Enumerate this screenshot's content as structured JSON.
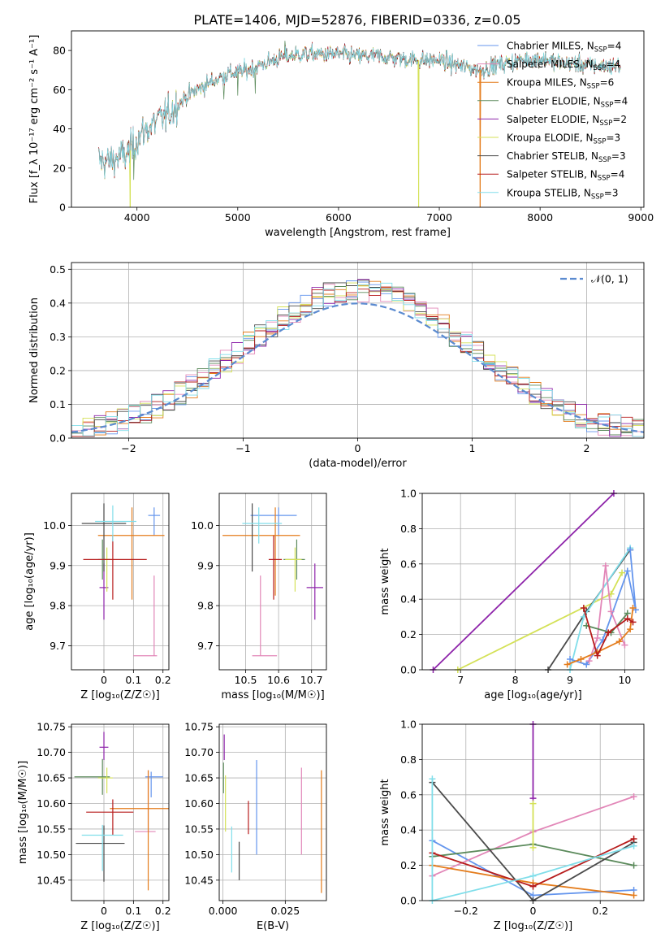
{
  "title": "PLATE=1406, MJD=52876, FIBERID=0336, z=0.05",
  "models": [
    {
      "name": "Chabrier MILES",
      "nssp": "4",
      "color": "#6495ED"
    },
    {
      "name": "Salpeter MILES",
      "nssp": "4",
      "color": "#E287B8"
    },
    {
      "name": "Kroupa MILES",
      "nssp": "6",
      "color": "#E47C1C"
    },
    {
      "name": "Chabrier ELODIE",
      "nssp": "4",
      "color": "#5B8A5B"
    },
    {
      "name": "Salpeter ELODIE",
      "nssp": "2",
      "color": "#8E24AA"
    },
    {
      "name": "Kroupa ELODIE",
      "nssp": "3",
      "color": "#D4E157"
    },
    {
      "name": "Chabrier STELIB",
      "nssp": "3",
      "color": "#4A4A4A"
    },
    {
      "name": "Salpeter STELIB",
      "nssp": "4",
      "color": "#B71C1C"
    },
    {
      "name": "Kroupa STELIB",
      "nssp": "3",
      "color": "#80DEEA"
    }
  ],
  "chart_data": [
    {
      "id": "spectrum",
      "type": "line",
      "xlabel": "wavelength [Angstrom, rest frame]",
      "ylabel": "Flux [f_λ 10⁻¹⁷ erg cm⁻² s⁻¹ A⁻¹]",
      "xlim": [
        3350,
        9030
      ],
      "ylim": [
        0,
        90
      ],
      "xticks": [
        4000,
        5000,
        6000,
        7000,
        8000,
        9000
      ],
      "yticks": [
        0,
        20,
        40,
        60,
        80
      ],
      "continuum": [
        [
          3620,
          24
        ],
        [
          3700,
          23
        ],
        [
          3800,
          25
        ],
        [
          3900,
          27
        ],
        [
          3950,
          30
        ],
        [
          4000,
          35
        ],
        [
          4100,
          40
        ],
        [
          4200,
          44
        ],
        [
          4300,
          47
        ],
        [
          4400,
          52
        ],
        [
          4500,
          57
        ],
        [
          4700,
          63
        ],
        [
          4900,
          68
        ],
        [
          5100,
          70
        ],
        [
          5200,
          72
        ],
        [
          5400,
          76
        ],
        [
          5600,
          78
        ],
        [
          5800,
          78
        ],
        [
          6000,
          78
        ],
        [
          6200,
          77
        ],
        [
          6400,
          77
        ],
        [
          6600,
          76
        ],
        [
          6800,
          75
        ],
        [
          7000,
          75
        ],
        [
          7200,
          72
        ],
        [
          7400,
          70
        ],
        [
          7600,
          73
        ],
        [
          7800,
          75
        ],
        [
          8000,
          76
        ],
        [
          8200,
          74
        ],
        [
          8400,
          73
        ],
        [
          8600,
          72
        ],
        [
          8800,
          72
        ]
      ],
      "dips": [
        [
          3933,
          0
        ],
        [
          6795,
          0
        ],
        [
          7405,
          0
        ]
      ],
      "spikes": [
        [
          5470,
          85
        ],
        [
          5000,
          57
        ],
        [
          4860,
          55
        ],
        [
          5175,
          58
        ],
        [
          3970,
          14
        ]
      ]
    },
    {
      "id": "residuals",
      "type": "histogram",
      "xlabel": "(data-model)/error",
      "ylabel": "Normed distribution",
      "xlim": [
        -2.5,
        2.5
      ],
      "ylim": [
        0,
        0.52
      ],
      "xticks": [
        -2,
        -1,
        0,
        1,
        2
      ],
      "yticks": [
        0.0,
        0.1,
        0.2,
        0.3,
        0.4,
        0.5
      ],
      "bin_width": 0.1,
      "reference": {
        "label": "𝒩(0, 1)",
        "mean": 0,
        "sigma": 1,
        "color": "#5B8BD0"
      }
    },
    {
      "id": "age-vs-Z",
      "type": "scatter",
      "xlabel": "Z [log₁₀(Z/Z☉)]",
      "ylabel": "age  [log₁₀(age/yr)]",
      "xlim": [
        -0.11,
        0.22
      ],
      "ylim": [
        9.64,
        10.08
      ],
      "xticks": [
        0.0,
        0.1,
        0.2
      ],
      "yticks": [
        9.7,
        9.8,
        9.9,
        10.0
      ],
      "points": [
        {
          "model": 0,
          "x": 0.17,
          "y": 10.025,
          "xerr": [
            0.02,
            0.02
          ],
          "yerr": [
            0.05,
            0.02
          ]
        },
        {
          "model": 1,
          "x": 0.15,
          "y": 9.675,
          "xerr": [
            0.05,
            0.03
          ],
          "yerr": [
            0.0,
            0.0
          ]
        },
        {
          "model": 1,
          "x": 0.17,
          "y": 9.675,
          "xerr": [
            0.0,
            0.0
          ],
          "yerr": [
            0.0,
            0.2
          ]
        },
        {
          "model": 2,
          "x": 0.095,
          "y": 9.975,
          "xerr": [
            0.115,
            0.11
          ],
          "yerr": [
            0.16,
            0.07
          ]
        },
        {
          "model": 3,
          "x": -0.005,
          "y": 9.915,
          "xerr": [
            0.015,
            0.025
          ],
          "yerr": [
            0.05,
            0.05
          ]
        },
        {
          "model": 4,
          "x": 0.0,
          "y": 9.845,
          "xerr": [
            0.015,
            0.015
          ],
          "yerr": [
            0.08,
            0.06
          ]
        },
        {
          "model": 5,
          "x": 0.01,
          "y": 9.915,
          "xerr": [
            0.025,
            0.015
          ],
          "yerr": [
            0.08,
            0.03
          ]
        },
        {
          "model": 6,
          "x": 0.0,
          "y": 10.005,
          "xerr": [
            0.075,
            0.075
          ],
          "yerr": [
            0.12,
            0.05
          ]
        },
        {
          "model": 7,
          "x": 0.03,
          "y": 9.915,
          "xerr": [
            0.1,
            0.115
          ],
          "yerr": [
            0.1,
            0.06
          ]
        },
        {
          "model": 8,
          "x": 0.03,
          "y": 10.01,
          "xerr": [
            0.06,
            0.08
          ],
          "yerr": [
            0.05,
            0.04
          ]
        }
      ]
    },
    {
      "id": "age-vs-mass",
      "type": "scatter",
      "xlabel": "mass [log₁₀(M/M☉)]",
      "ylabel": "",
      "xlim": [
        10.42,
        10.745
      ],
      "ylim": [
        9.64,
        10.08
      ],
      "xticks": [
        10.5,
        10.6,
        10.7
      ],
      "yticks": [
        9.7,
        9.8,
        9.9,
        10.0
      ],
      "points": [
        {
          "model": 0,
          "x": 10.6,
          "y": 10.025,
          "xerr": [
            0.085,
            0.055
          ],
          "yerr": [
            0.05,
            0.02
          ]
        },
        {
          "model": 1,
          "x": 10.545,
          "y": 9.675,
          "xerr": [
            0.025,
            0.05
          ],
          "yerr": [
            0.0,
            0.2
          ]
        },
        {
          "model": 2,
          "x": 10.59,
          "y": 9.975,
          "xerr": [
            0.16,
            0.075
          ],
          "yerr": [
            0.15,
            0.07
          ]
        },
        {
          "model": 3,
          "x": 10.655,
          "y": 9.915,
          "xerr": [
            0.04,
            0.025
          ],
          "yerr": [
            0.05,
            0.05
          ]
        },
        {
          "model": 4,
          "x": 10.71,
          "y": 9.845,
          "xerr": [
            0.025,
            0.025
          ],
          "yerr": [
            0.08,
            0.06
          ]
        },
        {
          "model": 5,
          "x": 10.65,
          "y": 9.915,
          "xerr": [
            0.03,
            0.02
          ],
          "yerr": [
            0.08,
            0.03
          ]
        },
        {
          "model": 6,
          "x": 10.52,
          "y": 10.005,
          "xerr": [
            0.0,
            0.0
          ],
          "yerr": [
            0.12,
            0.05
          ]
        },
        {
          "model": 7,
          "x": 10.585,
          "y": 9.915,
          "xerr": [
            0.015,
            0.025
          ],
          "yerr": [
            0.1,
            0.06
          ]
        },
        {
          "model": 8,
          "x": 10.54,
          "y": 10.005,
          "xerr": [
            0.05,
            0.07
          ],
          "yerr": [
            0.05,
            0.04
          ]
        }
      ]
    },
    {
      "id": "weight-vs-age",
      "type": "line",
      "xlabel": "age  [log₁₀(age/yr)]",
      "ylabel": "mass weight",
      "xlim": [
        6.3,
        10.35
      ],
      "ylim": [
        0,
        1.0
      ],
      "xticks": [
        7,
        8,
        9,
        10
      ],
      "yticks": [
        0.0,
        0.2,
        0.4,
        0.6,
        0.8,
        1.0
      ],
      "series": [
        {
          "model": 4,
          "x": [
            6.5,
            9.8
          ],
          "y": [
            0.0,
            1.0
          ]
        },
        {
          "model": 5,
          "x": [
            6.95,
            9.75,
            9.95
          ],
          "y": [
            0.0,
            0.43,
            0.55
          ]
        },
        {
          "model": 6,
          "x": [
            8.6,
            9.3,
            10.1
          ],
          "y": [
            0.0,
            0.33,
            0.68
          ]
        },
        {
          "model": 8,
          "x": [
            9.0,
            9.25,
            10.1
          ],
          "y": [
            0.0,
            0.3,
            0.69
          ]
        },
        {
          "model": 0,
          "x": [
            9.0,
            9.3,
            9.6,
            10.05,
            10.2,
            10.1
          ],
          "y": [
            0.06,
            0.03,
            0.17,
            0.56,
            0.34,
            0.68
          ]
        },
        {
          "model": 1,
          "x": [
            9.35,
            9.5,
            9.65,
            9.75,
            10.0
          ],
          "y": [
            0.05,
            0.18,
            0.59,
            0.33,
            0.14
          ]
        },
        {
          "model": 2,
          "x": [
            8.95,
            9.2,
            9.5,
            9.9,
            10.1,
            10.15
          ],
          "y": [
            0.03,
            0.06,
            0.1,
            0.16,
            0.23,
            0.35
          ]
        },
        {
          "model": 3,
          "x": [
            9.3,
            9.75,
            10.05
          ],
          "y": [
            0.25,
            0.21,
            0.32
          ]
        },
        {
          "model": 7,
          "x": [
            9.25,
            9.5,
            9.7,
            10.05,
            10.15
          ],
          "y": [
            0.35,
            0.08,
            0.21,
            0.29,
            0.27
          ]
        }
      ]
    },
    {
      "id": "mass-vs-Z",
      "type": "scatter",
      "xlabel": "Z [log₁₀(Z/Z☉)]",
      "ylabel": "mass [log₁₀(M/M☉)]",
      "xlim": [
        -0.11,
        0.22
      ],
      "ylim": [
        10.41,
        10.755
      ],
      "xticks": [
        0.0,
        0.1,
        0.2
      ],
      "yticks": [
        10.45,
        10.5,
        10.55,
        10.6,
        10.65,
        10.7,
        10.75
      ],
      "points": [
        {
          "model": 0,
          "x": 0.16,
          "y": 10.652,
          "xerr": [
            0.02,
            0.04
          ],
          "yerr": [
            0.04,
            0.01
          ]
        },
        {
          "model": 1,
          "x": 0.15,
          "y": 10.545,
          "xerr": [
            0.045,
            0.025
          ],
          "yerr": [
            0.0,
            0.12
          ]
        },
        {
          "model": 2,
          "x": 0.15,
          "y": 10.59,
          "xerr": [
            0.13,
            0.07
          ],
          "yerr": [
            0.16,
            0.075
          ]
        },
        {
          "model": 3,
          "x": -0.005,
          "y": 10.652,
          "xerr": [
            0.095,
            0.025
          ],
          "yerr": [
            0.035,
            0.035
          ]
        },
        {
          "model": 4,
          "x": 0.0,
          "y": 10.71,
          "xerr": [
            0.015,
            0.015
          ],
          "yerr": [
            0.025,
            0.03
          ]
        },
        {
          "model": 5,
          "x": 0.01,
          "y": 10.65,
          "xerr": [
            0.03,
            0.02
          ],
          "yerr": [
            0.03,
            0.02
          ]
        },
        {
          "model": 6,
          "x": 0.0,
          "y": 10.522,
          "xerr": [
            0.095,
            0.07
          ],
          "yerr": [
            0.075,
            0.035
          ]
        },
        {
          "model": 7,
          "x": 0.03,
          "y": 10.583,
          "xerr": [
            0.09,
            0.07
          ],
          "yerr": [
            0.045,
            0.025
          ]
        },
        {
          "model": 8,
          "x": -0.005,
          "y": 10.538,
          "xerr": [
            0.07,
            0.07
          ],
          "yerr": [
            0.07,
            0.02
          ]
        }
      ]
    },
    {
      "id": "mass-vs-ebv",
      "type": "scatter",
      "xlabel": "E(B-V)",
      "ylabel": "",
      "xlim": [
        -0.0015,
        0.0415
      ],
      "ylim": [
        10.41,
        10.755
      ],
      "xticks": [
        0.0,
        0.025
      ],
      "xticklabels": [
        "0.000",
        "0.025"
      ],
      "yticks": [
        10.45,
        10.5,
        10.55,
        10.6,
        10.65,
        10.7,
        10.75
      ],
      "points": [
        {
          "model": 0,
          "x": 0.0135,
          "y": 10.6,
          "yerr": [
            0.1,
            0.085
          ]
        },
        {
          "model": 1,
          "x": 0.0315,
          "y": 10.545,
          "yerr": [
            0.045,
            0.125
          ]
        },
        {
          "model": 2,
          "x": 0.0395,
          "y": 10.545,
          "yerr": [
            0.12,
            0.12
          ]
        },
        {
          "model": 3,
          "x": 0.0002,
          "y": 10.65,
          "yerr": [
            0.03,
            0.03
          ]
        },
        {
          "model": 4,
          "x": 0.0005,
          "y": 10.71,
          "yerr": [
            0.025,
            0.025
          ]
        },
        {
          "model": 5,
          "x": 0.001,
          "y": 10.6,
          "yerr": [
            0.055,
            0.055
          ]
        },
        {
          "model": 6,
          "x": 0.0065,
          "y": 10.485,
          "yerr": [
            0.035,
            0.04
          ]
        },
        {
          "model": 7,
          "x": 0.0102,
          "y": 10.57,
          "yerr": [
            0.03,
            0.035
          ]
        },
        {
          "model": 8,
          "x": 0.0035,
          "y": 10.51,
          "yerr": [
            0.045,
            0.045
          ]
        }
      ]
    },
    {
      "id": "weight-vs-Z",
      "type": "line",
      "xlabel": "Z [log₁₀(Z/Z☉)]",
      "ylabel": "mass weight",
      "xlim": [
        -0.33,
        0.33
      ],
      "ylim": [
        0,
        1.0
      ],
      "xticks": [
        -0.2,
        0.0,
        0.2
      ],
      "yticks": [
        0.0,
        0.2,
        0.4,
        0.6,
        0.8,
        1.0
      ],
      "series": [
        {
          "model": 0,
          "x": [
            -0.3,
            0.0,
            0.3
          ],
          "y": [
            0.34,
            0.03,
            0.06
          ]
        },
        {
          "model": 1,
          "x": [
            -0.3,
            0.0,
            0.3
          ],
          "y": [
            0.14,
            0.39,
            0.59
          ]
        },
        {
          "model": 2,
          "x": [
            -0.3,
            0.0,
            0.3
          ],
          "y": [
            0.2,
            0.1,
            0.03
          ]
        },
        {
          "model": 3,
          "x": [
            -0.3,
            0.0,
            0.3
          ],
          "y": [
            0.25,
            0.32,
            0.2
          ]
        },
        {
          "model": 4,
          "x": [
            0.0,
            0.0
          ],
          "y": [
            0.58,
            1.0
          ]
        },
        {
          "model": 5,
          "x": [
            0.0,
            0.0
          ],
          "y": [
            0.3,
            0.55
          ]
        },
        {
          "model": 6,
          "x": [
            -0.3,
            0.0,
            0.3
          ],
          "y": [
            0.67,
            0.0,
            0.33
          ]
        },
        {
          "model": 7,
          "x": [
            -0.3,
            0.0,
            0.3
          ],
          "y": [
            0.27,
            0.08,
            0.35
          ]
        },
        {
          "model": 8,
          "x": [
            -0.3,
            -0.3,
            0.0,
            0.3
          ],
          "y": [
            0.69,
            0.0,
            0.14,
            0.31
          ]
        }
      ]
    }
  ]
}
